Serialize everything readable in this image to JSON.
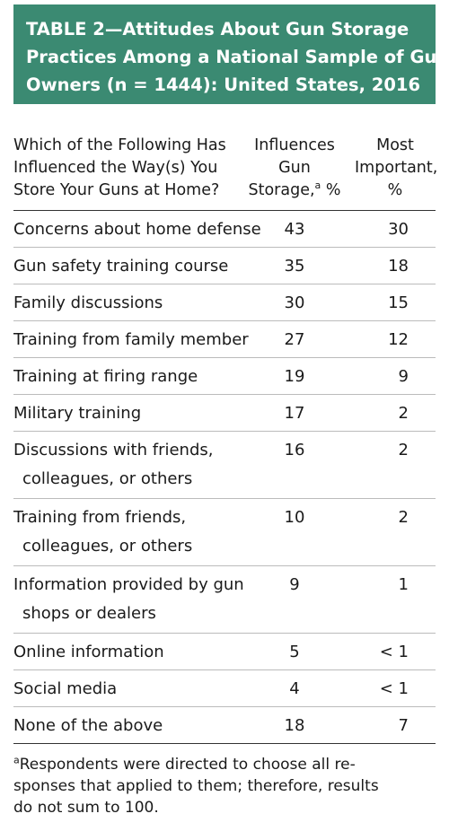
{
  "title": {
    "lines": [
      "TABLE 2—Attitudes About Gun Storage",
      "Practices Among a National Sample of Gun",
      "Owners (n = 1444): United States, 2016"
    ]
  },
  "table": {
    "headers": {
      "question": [
        "Which of the Following Has",
        "Influenced the Way(s) You",
        "Store Your Guns at Home?"
      ],
      "influences": [
        "Influences",
        "Gun",
        "Storage,",
        "a",
        " %"
      ],
      "important": [
        "Most",
        "Important,",
        "%"
      ]
    },
    "rows": [
      {
        "label": [
          "Concerns about home defense"
        ],
        "influences": "43",
        "important": "30"
      },
      {
        "label": [
          "Gun safety training course"
        ],
        "influences": "35",
        "important": "18"
      },
      {
        "label": [
          "Family discussions"
        ],
        "influences": "30",
        "important": "15"
      },
      {
        "label": [
          "Training from family member"
        ],
        "influences": "27",
        "important": "12"
      },
      {
        "label": [
          "Training at firing range"
        ],
        "influences": "19",
        "important": "9"
      },
      {
        "label": [
          "Military training"
        ],
        "influences": "17",
        "important": "2"
      },
      {
        "label": [
          "Discussions with friends,",
          "colleagues, or others"
        ],
        "influences": "16",
        "important": "2"
      },
      {
        "label": [
          "Training from friends,",
          "colleagues, or others"
        ],
        "influences": "10",
        "important": "2"
      },
      {
        "label": [
          "Information provided by gun",
          "shops or dealers"
        ],
        "influences": "9",
        "important": "1"
      },
      {
        "label": [
          "Online information"
        ],
        "influences": "5",
        "important": "< 1"
      },
      {
        "label": [
          "Social media"
        ],
        "influences": "4",
        "important": "< 1"
      },
      {
        "label": [
          "None of the above"
        ],
        "influences": "18",
        "important": "7"
      }
    ]
  },
  "footnote": {
    "marker": "a",
    "lines": [
      "Respondents were directed to choose all re-",
      "sponses that applied to them; therefore, results",
      "do not sum to 100."
    ]
  },
  "colors": {
    "banner": "#3b8a72",
    "title_text": "#ffffff",
    "rule_strong": "#333333",
    "rule_light": "#bbbbbb"
  }
}
